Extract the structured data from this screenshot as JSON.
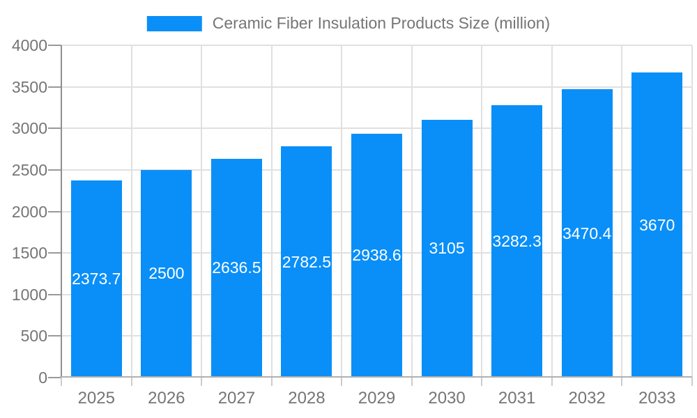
{
  "chart_data": {
    "type": "bar",
    "title": "Ceramic Fiber Insulation Products Size (million)",
    "legend": [
      "Ceramic Fiber Insulation Products Size (million)"
    ],
    "legend_position": "top-center",
    "categories": [
      "2025",
      "2026",
      "2027",
      "2028",
      "2029",
      "2030",
      "2031",
      "2032",
      "2033"
    ],
    "series": [
      {
        "name": "Ceramic Fiber Insulation Products Size (million)",
        "values": [
          2373.7,
          2500,
          2636.5,
          2782.5,
          2938.6,
          3105,
          3282.3,
          3470.4,
          3670
        ]
      }
    ],
    "value_labels_shown": true,
    "xlabel": "",
    "ylabel": "",
    "ylim": [
      0,
      4000
    ],
    "ytick_step": 500,
    "y_tick_labels": [
      "0",
      "500",
      "1000",
      "1500",
      "2000",
      "2500",
      "3000",
      "3500",
      "4000"
    ],
    "grid": true
  },
  "colors": {
    "bar": "#0a8ff8",
    "value_label": "#ffffff",
    "axis_text": "#757575",
    "grid_line": "#e0e0e0",
    "y_axis_line": "#8f8f8f",
    "x_axis_line": "#b0b0b0",
    "y_tick": "#999999",
    "x_tick": "#cccccc",
    "background": "#ffffff"
  }
}
